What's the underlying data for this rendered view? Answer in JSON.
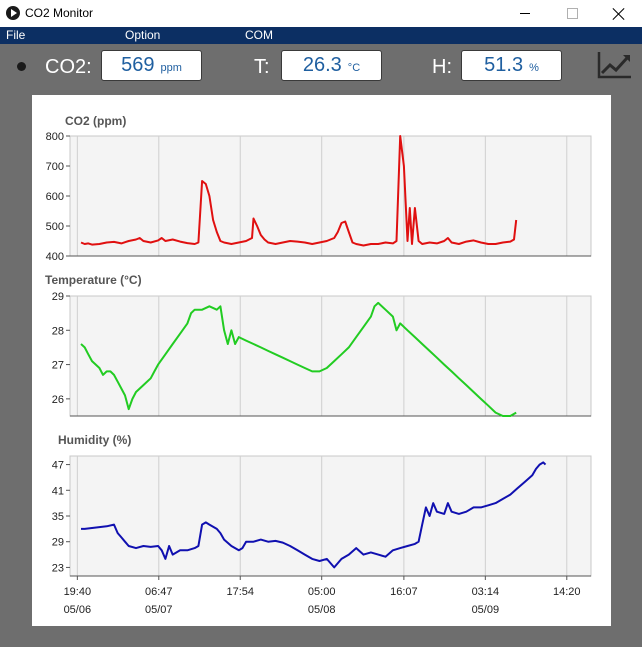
{
  "window": {
    "title": "CO2 Monitor"
  },
  "menu": {
    "file": "File",
    "option": "Option",
    "com": "COM"
  },
  "readings": {
    "co2": {
      "label": "CO2:",
      "value": "569",
      "unit": "ppm"
    },
    "temperature": {
      "label": "T:",
      "value": "26.3",
      "unit": "°C"
    },
    "humidity": {
      "label": "H:",
      "value": "51.3",
      "unit": "%"
    }
  },
  "colors": {
    "co2": "#e01010",
    "temperature": "#22cc22",
    "humidity": "#1010b0",
    "menubar": "#0c2f63",
    "readout_text": "#1f5fa0"
  },
  "icons": {
    "app": "play-circle-icon",
    "trend": "trend-chart-icon"
  },
  "chart_data": [
    {
      "type": "line",
      "title": "CO2 (ppm)",
      "ylim": [
        400,
        800
      ],
      "yticks": [
        400,
        500,
        600,
        700,
        800
      ],
      "grid": true,
      "series": [
        {
          "values": [
            [
              0.5,
              445
            ],
            [
              1,
              440
            ],
            [
              1.5,
              442
            ],
            [
              2,
              438
            ],
            [
              3,
              440
            ],
            [
              4,
              445
            ],
            [
              5,
              447
            ],
            [
              6,
              442
            ],
            [
              7,
              450
            ],
            [
              8,
              455
            ],
            [
              8.5,
              460
            ],
            [
              9,
              450
            ],
            [
              10,
              445
            ],
            [
              11,
              452
            ],
            [
              11.5,
              460
            ],
            [
              12,
              450
            ],
            [
              13,
              455
            ],
            [
              14,
              448
            ],
            [
              15,
              443
            ],
            [
              16,
              440
            ],
            [
              16.5,
              445
            ],
            [
              17,
              650
            ],
            [
              17.5,
              640
            ],
            [
              18,
              600
            ],
            [
              18.5,
              520
            ],
            [
              19,
              480
            ],
            [
              19.5,
              450
            ],
            [
              20,
              445
            ],
            [
              21,
              440
            ],
            [
              22,
              445
            ],
            [
              23,
              450
            ],
            [
              23.8,
              460
            ],
            [
              24,
              525
            ],
            [
              24.5,
              500
            ],
            [
              25,
              470
            ],
            [
              25.5,
              455
            ],
            [
              26,
              445
            ],
            [
              27,
              440
            ],
            [
              28,
              445
            ],
            [
              29,
              450
            ],
            [
              30,
              448
            ],
            [
              31,
              445
            ],
            [
              32,
              440
            ],
            [
              33,
              445
            ],
            [
              34,
              450
            ],
            [
              35,
              460
            ],
            [
              35.5,
              480
            ],
            [
              36,
              510
            ],
            [
              36.5,
              515
            ],
            [
              37,
              480
            ],
            [
              37.5,
              445
            ],
            [
              38,
              440
            ],
            [
              39,
              435
            ],
            [
              40,
              440
            ],
            [
              41,
              440
            ],
            [
              42,
              445
            ],
            [
              43,
              442
            ],
            [
              43.5,
              450
            ],
            [
              44,
              800
            ],
            [
              44.5,
              700
            ],
            [
              45,
              450
            ],
            [
              45.3,
              560
            ],
            [
              45.6,
              440
            ],
            [
              46,
              560
            ],
            [
              46.5,
              450
            ],
            [
              47,
              440
            ],
            [
              48,
              445
            ],
            [
              49,
              442
            ],
            [
              50,
              450
            ],
            [
              50.5,
              460
            ],
            [
              51,
              445
            ],
            [
              52,
              440
            ],
            [
              53,
              448
            ],
            [
              54,
              452
            ],
            [
              55,
              445
            ],
            [
              56,
              440
            ],
            [
              57,
              440
            ],
            [
              58,
              445
            ],
            [
              59,
              448
            ],
            [
              59.5,
              455
            ],
            [
              59.8,
              520
            ]
          ]
        }
      ]
    },
    {
      "type": "line",
      "title": "Temperature (°C)",
      "ylim": [
        25.5,
        29
      ],
      "yticks": [
        26,
        27,
        28,
        29
      ],
      "grid": true,
      "series": [
        {
          "values": [
            [
              0.5,
              27.6
            ],
            [
              1,
              27.5
            ],
            [
              1.5,
              27.3
            ],
            [
              2,
              27.1
            ],
            [
              3,
              26.9
            ],
            [
              3.5,
              26.7
            ],
            [
              4,
              26.8
            ],
            [
              4.5,
              26.8
            ],
            [
              5,
              26.7
            ],
            [
              5.5,
              26.5
            ],
            [
              6,
              26.3
            ],
            [
              6.5,
              26.1
            ],
            [
              7,
              25.7
            ],
            [
              7.5,
              26.0
            ],
            [
              8,
              26.2
            ],
            [
              9,
              26.4
            ],
            [
              10,
              26.6
            ],
            [
              10.5,
              26.8
            ],
            [
              11,
              27.0
            ],
            [
              12,
              27.3
            ],
            [
              13,
              27.6
            ],
            [
              14,
              27.9
            ],
            [
              15,
              28.2
            ],
            [
              15.5,
              28.5
            ],
            [
              16,
              28.6
            ],
            [
              17,
              28.6
            ],
            [
              18,
              28.7
            ],
            [
              19,
              28.6
            ],
            [
              19.5,
              28.7
            ],
            [
              20,
              28.0
            ],
            [
              20.5,
              27.6
            ],
            [
              21,
              28.0
            ],
            [
              21.5,
              27.6
            ],
            [
              22,
              27.8
            ],
            [
              23,
              27.7
            ],
            [
              24,
              27.6
            ],
            [
              25,
              27.5
            ],
            [
              26,
              27.4
            ],
            [
              27,
              27.3
            ],
            [
              28,
              27.2
            ],
            [
              29,
              27.1
            ],
            [
              30,
              27.0
            ],
            [
              31,
              26.9
            ],
            [
              32,
              26.8
            ],
            [
              33,
              26.8
            ],
            [
              34,
              26.9
            ],
            [
              35,
              27.1
            ],
            [
              36,
              27.3
            ],
            [
              37,
              27.5
            ],
            [
              38,
              27.8
            ],
            [
              39,
              28.1
            ],
            [
              40,
              28.4
            ],
            [
              40.5,
              28.7
            ],
            [
              41,
              28.8
            ],
            [
              42,
              28.6
            ],
            [
              43,
              28.4
            ],
            [
              43.5,
              28.0
            ],
            [
              44,
              28.2
            ],
            [
              45,
              28.0
            ],
            [
              46,
              27.8
            ],
            [
              47,
              27.6
            ],
            [
              48,
              27.4
            ],
            [
              49,
              27.2
            ],
            [
              50,
              27.0
            ],
            [
              51,
              26.8
            ],
            [
              52,
              26.6
            ],
            [
              53,
              26.4
            ],
            [
              54,
              26.2
            ],
            [
              55,
              26.0
            ],
            [
              56,
              25.8
            ],
            [
              57,
              25.6
            ],
            [
              58,
              25.5
            ],
            [
              59,
              25.5
            ],
            [
              59.8,
              25.6
            ]
          ]
        }
      ]
    },
    {
      "type": "line",
      "title": "Humidity (%)",
      "ylim": [
        21,
        49
      ],
      "yticks": [
        23,
        29,
        35,
        41,
        47
      ],
      "grid": true,
      "series": [
        {
          "values": [
            [
              0.5,
              32
            ],
            [
              1,
              32
            ],
            [
              2,
              32.2
            ],
            [
              3,
              32.4
            ],
            [
              4,
              32.6
            ],
            [
              5,
              33
            ],
            [
              5.5,
              31
            ],
            [
              6,
              30
            ],
            [
              6.5,
              29
            ],
            [
              7,
              28
            ],
            [
              8,
              27.5
            ],
            [
              9,
              28
            ],
            [
              10,
              27.8
            ],
            [
              11,
              28
            ],
            [
              11.5,
              27
            ],
            [
              12,
              25
            ],
            [
              12.5,
              28
            ],
            [
              13,
              26
            ],
            [
              14,
              27
            ],
            [
              15,
              27
            ],
            [
              16,
              27.5
            ],
            [
              16.5,
              28
            ],
            [
              17,
              33
            ],
            [
              17.5,
              33.5
            ],
            [
              18,
              33
            ],
            [
              19,
              32
            ],
            [
              19.5,
              31
            ],
            [
              20,
              29.5
            ],
            [
              21,
              28
            ],
            [
              22,
              27
            ],
            [
              22.5,
              27.5
            ],
            [
              23,
              29
            ],
            [
              24,
              29
            ],
            [
              25,
              29.5
            ],
            [
              26,
              29
            ],
            [
              27,
              29.2
            ],
            [
              28,
              28.8
            ],
            [
              29,
              28
            ],
            [
              30,
              27
            ],
            [
              31,
              26
            ],
            [
              32,
              25
            ],
            [
              33,
              24.5
            ],
            [
              34,
              25
            ],
            [
              35,
              23
            ],
            [
              36,
              25
            ],
            [
              37,
              26
            ],
            [
              38,
              27.5
            ],
            [
              39,
              26
            ],
            [
              40,
              26.5
            ],
            [
              41,
              26
            ],
            [
              42,
              25.5
            ],
            [
              43,
              27
            ],
            [
              44,
              27.5
            ],
            [
              45,
              28
            ],
            [
              46,
              28.5
            ],
            [
              46.5,
              29
            ],
            [
              47,
              33
            ],
            [
              47.5,
              37
            ],
            [
              48,
              35
            ],
            [
              48.5,
              38
            ],
            [
              49,
              36
            ],
            [
              50,
              35.5
            ],
            [
              50.5,
              38
            ],
            [
              51,
              36
            ],
            [
              52,
              35.5
            ],
            [
              53,
              36
            ],
            [
              54,
              37
            ],
            [
              55,
              37
            ],
            [
              56,
              37.5
            ],
            [
              57,
              38
            ],
            [
              58,
              39
            ],
            [
              59,
              40
            ],
            [
              60,
              41.5
            ],
            [
              61,
              43
            ],
            [
              62,
              44.5
            ],
            [
              62.5,
              46
            ],
            [
              63,
              47
            ],
            [
              63.5,
              47.5
            ],
            [
              63.8,
              47
            ]
          ]
        }
      ]
    }
  ],
  "x_axis": {
    "range": [
      -1,
      70
    ],
    "ticks": [
      {
        "t": 0,
        "time": "19:40",
        "date": "05/06"
      },
      {
        "t": 11.1,
        "time": "06:47",
        "date": "05/07"
      },
      {
        "t": 22.2,
        "time": "17:54",
        "date": ""
      },
      {
        "t": 33.3,
        "time": "05:00",
        "date": "05/08"
      },
      {
        "t": 44.5,
        "time": "16:07",
        "date": ""
      },
      {
        "t": 55.6,
        "time": "03:14",
        "date": "05/09"
      },
      {
        "t": 66.7,
        "time": "14:20",
        "date": ""
      }
    ]
  }
}
